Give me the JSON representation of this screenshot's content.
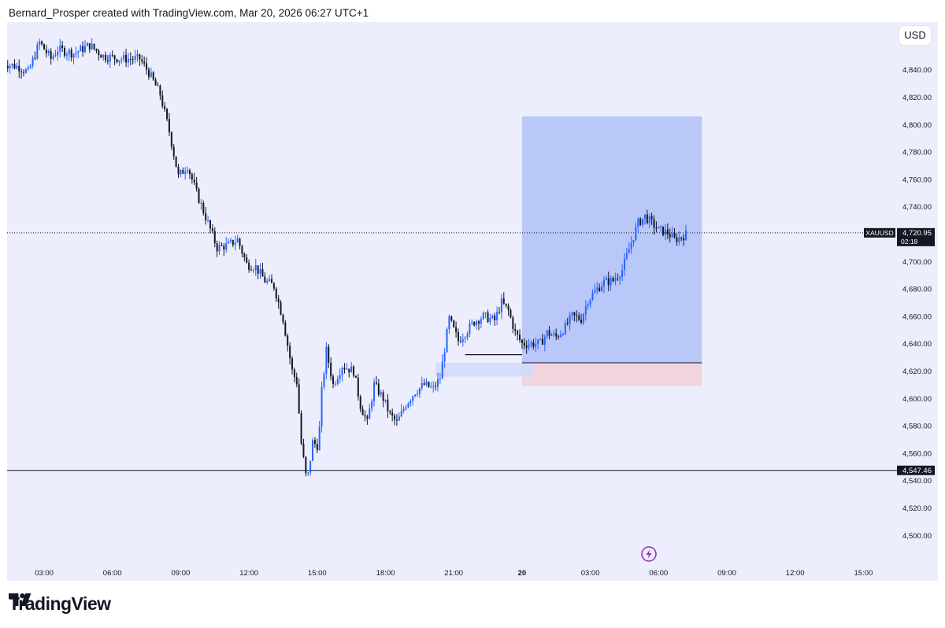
{
  "header": {
    "text": "Bernard_Prosper created with TradingView.com, Mar 20, 2026 06:27 UTC+1"
  },
  "currency_button": "USD",
  "footer": {
    "brand": "TradingView"
  },
  "colors": {
    "background": "#eceefd",
    "candle_up": "#2962ff",
    "candle_down": "#131722",
    "profit_zone": "#b9c8f9",
    "loss_zone": "#f2d4df",
    "demand_zone": "#d2dafb",
    "signal_icon": "#9c27b0"
  },
  "chart_data": {
    "type": "candlestick",
    "symbol": "XAUUSD",
    "ylim": [
      4500,
      4860
    ],
    "y_ticks": [
      4500,
      4520,
      4540,
      4560,
      4580,
      4600,
      4620,
      4640,
      4660,
      4680,
      4700,
      4720,
      4740,
      4760,
      4780,
      4800,
      4820,
      4840
    ],
    "y_tick_labels": [
      "4,500.00",
      "4,520.00",
      "4,540.00",
      "4,560.00",
      "4,580.00",
      "4,600.00",
      "4,620.00",
      "4,640.00",
      "4,660.00",
      "4,680.00",
      "4,700.00",
      "4,720.00",
      "4,740.00",
      "4,760.00",
      "4,780.00",
      "4,800.00",
      "4,820.00",
      "4,840.00"
    ],
    "x_ticks": [
      {
        "label": "03:00",
        "t": 3
      },
      {
        "label": "06:00",
        "t": 6
      },
      {
        "label": "09:00",
        "t": 9
      },
      {
        "label": "12:00",
        "t": 12
      },
      {
        "label": "15:00",
        "t": 15
      },
      {
        "label": "18:00",
        "t": 18
      },
      {
        "label": "21:00",
        "t": 21
      },
      {
        "label": "20",
        "t": 24,
        "bold": true
      },
      {
        "label": "03:00",
        "t": 27
      },
      {
        "label": "06:00",
        "t": 30
      },
      {
        "label": "09:00",
        "t": 33
      },
      {
        "label": "12:00",
        "t": 36
      },
      {
        "label": "15:00",
        "t": 39
      }
    ],
    "t_range": [
      1.2,
      41.0
    ],
    "price_path": [
      [
        1.2,
        4845
      ],
      [
        1.9,
        4842
      ],
      [
        2.3,
        4838
      ],
      [
        2.8,
        4860
      ],
      [
        3.3,
        4848
      ],
      [
        3.6,
        4855
      ],
      [
        4.3,
        4852
      ],
      [
        5.0,
        4858
      ],
      [
        5.6,
        4850
      ],
      [
        6.4,
        4848
      ],
      [
        7.2,
        4848
      ],
      [
        7.6,
        4838
      ],
      [
        8.1,
        4822
      ],
      [
        8.5,
        4795
      ],
      [
        8.9,
        4762
      ],
      [
        9.3,
        4770
      ],
      [
        9.7,
        4750
      ],
      [
        10.2,
        4728
      ],
      [
        10.6,
        4710
      ],
      [
        11.1,
        4712
      ],
      [
        11.5,
        4716
      ],
      [
        11.9,
        4698
      ],
      [
        12.3,
        4696
      ],
      [
        12.7,
        4686
      ],
      [
        13.1,
        4682
      ],
      [
        13.5,
        4658
      ],
      [
        13.9,
        4620
      ],
      [
        14.1,
        4612
      ],
      [
        14.3,
        4567
      ],
      [
        14.55,
        4538
      ],
      [
        14.8,
        4568
      ],
      [
        15.05,
        4565
      ],
      [
        15.2,
        4605
      ],
      [
        15.4,
        4635
      ],
      [
        15.7,
        4610
      ],
      [
        16.1,
        4624
      ],
      [
        16.6,
        4620
      ],
      [
        16.9,
        4595
      ],
      [
        17.2,
        4582
      ],
      [
        17.5,
        4610
      ],
      [
        17.9,
        4600
      ],
      [
        18.2,
        4588
      ],
      [
        18.5,
        4582
      ],
      [
        18.9,
        4596
      ],
      [
        19.3,
        4605
      ],
      [
        19.7,
        4610
      ],
      [
        20.1,
        4607
      ],
      [
        20.4,
        4615
      ],
      [
        20.8,
        4658
      ],
      [
        21.2,
        4642
      ],
      [
        21.5,
        4648
      ],
      [
        21.9,
        4656
      ],
      [
        22.3,
        4660
      ],
      [
        22.8,
        4657
      ],
      [
        23.1,
        4670
      ],
      [
        23.4,
        4664
      ],
      [
        23.7,
        4648
      ],
      [
        24.0,
        4640
      ],
      [
        24.4,
        4640
      ],
      [
        24.8,
        4640
      ],
      [
        25.1,
        4648
      ],
      [
        25.5,
        4645
      ],
      [
        25.9,
        4652
      ],
      [
        26.2,
        4660
      ],
      [
        26.6,
        4658
      ],
      [
        26.9,
        4672
      ],
      [
        27.3,
        4680
      ],
      [
        27.6,
        4685
      ],
      [
        28.0,
        4686
      ],
      [
        28.4,
        4694
      ],
      [
        28.8,
        4714
      ],
      [
        29.1,
        4728
      ],
      [
        29.4,
        4733
      ],
      [
        29.7,
        4728
      ],
      [
        30.0,
        4723
      ],
      [
        30.4,
        4721
      ],
      [
        30.7,
        4716
      ],
      [
        31.0,
        4718
      ],
      [
        31.3,
        4720.95
      ]
    ],
    "last_price": {
      "label": "XAUUSD",
      "value": "4,720.95",
      "countdown": "02:18",
      "price": 4720.95
    },
    "support_line": {
      "value": "4,547.46",
      "price": 4547.46
    },
    "long_position": {
      "t_start": 24.0,
      "t_end": 31.9,
      "entry": 4626,
      "target": 4806,
      "stop": 4609
    },
    "demand_zone": {
      "t_start": 20.2,
      "t_end": 24.5,
      "top": 4626,
      "bottom": 4616
    },
    "swing_low_line": {
      "t_start": 21.5,
      "t_end": 24.0,
      "price": 4632
    }
  }
}
